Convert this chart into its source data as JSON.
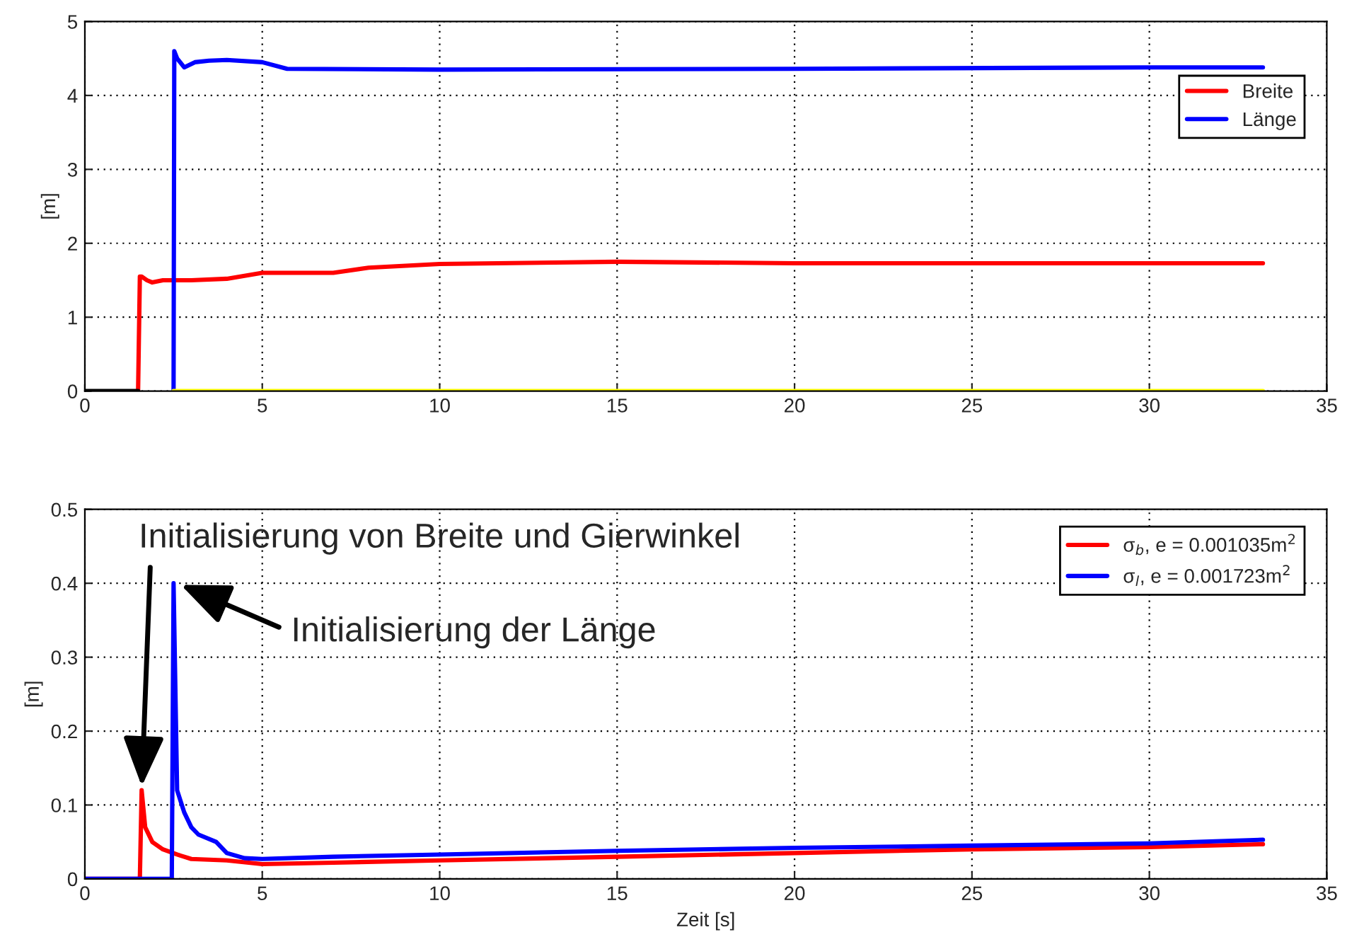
{
  "chart_data": [
    {
      "type": "line",
      "ylabel": "[m]",
      "xlim": [
        0,
        35
      ],
      "ylim": [
        0,
        5
      ],
      "xticks": [
        0,
        5,
        10,
        15,
        20,
        25,
        30,
        35
      ],
      "yticks": [
        0,
        1,
        2,
        3,
        4,
        5
      ],
      "grid": true,
      "legend": "top right",
      "series": [
        {
          "name": "Breite",
          "color": "#ff0000",
          "x": [
            1.5,
            1.55,
            1.6,
            1.75,
            1.9,
            2.2,
            3,
            4,
            5,
            7,
            8,
            10,
            15,
            20,
            33.2
          ],
          "values": [
            0,
            1.55,
            1.55,
            1.5,
            1.47,
            1.5,
            1.5,
            1.52,
            1.6,
            1.6,
            1.67,
            1.72,
            1.75,
            1.73,
            1.73
          ]
        },
        {
          "name": "Länge",
          "color": "#0000ff",
          "x": [
            2.5,
            2.52,
            2.6,
            2.8,
            3.1,
            3.5,
            4,
            5,
            5.7,
            10,
            20,
            30,
            33.2
          ],
          "values": [
            0,
            4.6,
            4.5,
            4.38,
            4.45,
            4.47,
            4.48,
            4.45,
            4.36,
            4.35,
            4.36,
            4.38,
            4.38
          ]
        },
        {
          "color": "#000000",
          "x": [
            0,
            1.5
          ],
          "values": [
            0,
            0
          ]
        },
        {
          "color": "#ffff00",
          "x": [
            2.5,
            33.2
          ],
          "values": [
            0,
            0
          ]
        }
      ]
    },
    {
      "type": "line",
      "ylabel": "[m]",
      "xlabel": "Zeit [s]",
      "xlim": [
        0,
        35
      ],
      "ylim": [
        0,
        0.5
      ],
      "xticks": [
        0,
        5,
        10,
        15,
        20,
        25,
        30,
        35
      ],
      "yticks": [
        0,
        0.1,
        0.2,
        0.3,
        0.4,
        0.5
      ],
      "grid": true,
      "legend": "top right",
      "series": [
        {
          "name": "σ$_{b}$, e = 0.001035m$^{2}$",
          "color": "#ff0000",
          "x": [
            0,
            1.55,
            1.6,
            1.7,
            1.9,
            2.2,
            2.6,
            3,
            4,
            5,
            7,
            10,
            15,
            20,
            25,
            30,
            33.2
          ],
          "values": [
            0,
            0,
            0.12,
            0.07,
            0.05,
            0.04,
            0.033,
            0.027,
            0.025,
            0.02,
            0.022,
            0.025,
            0.03,
            0.035,
            0.04,
            0.043,
            0.047
          ]
        },
        {
          "name": "σ$_{l}$, e = 0.001723m$^{2}$",
          "color": "#0000ff",
          "x": [
            0,
            2.45,
            2.5,
            2.6,
            2.8,
            3,
            3.2,
            3.7,
            4,
            4.5,
            5,
            7,
            10,
            15,
            20,
            25,
            30,
            33.2
          ],
          "values": [
            0,
            0,
            0.4,
            0.12,
            0.09,
            0.07,
            0.06,
            0.05,
            0.035,
            0.028,
            0.027,
            0.03,
            0.033,
            0.038,
            0.042,
            0.045,
            0.048,
            0.053
          ]
        }
      ],
      "annotations": [
        {
          "text": "Initialisierung von Breite und Gierwinkel",
          "x": 1.6,
          "y": 0.12
        },
        {
          "text": "Initialisierung der Länge",
          "x": 2.6,
          "y": 0.4
        }
      ]
    }
  ]
}
